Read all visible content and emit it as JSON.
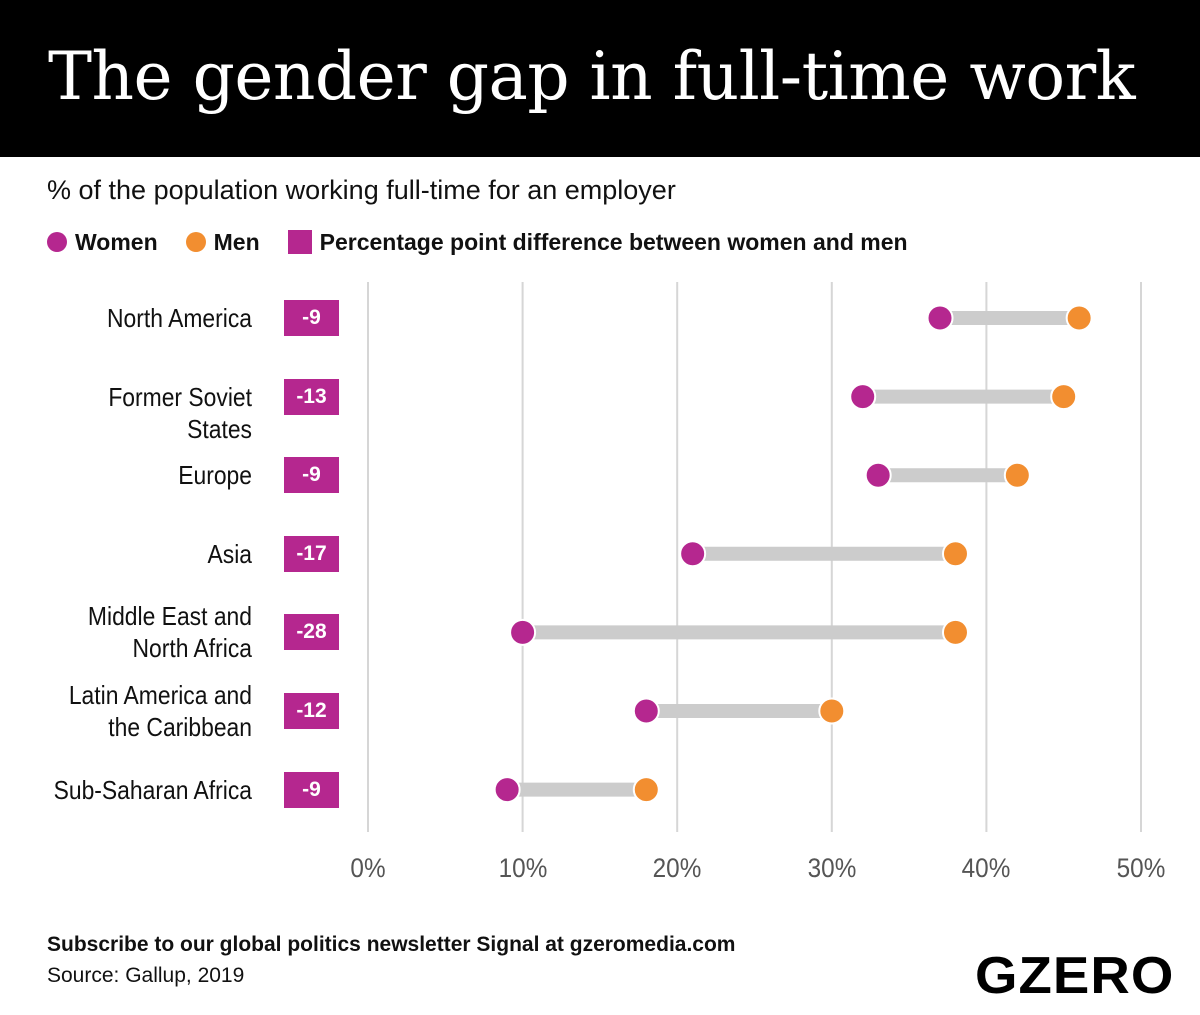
{
  "header": {
    "title": "The gender gap in full-time work"
  },
  "colors": {
    "women": "#b5278f",
    "men": "#f28e30",
    "connector": "#cccccc",
    "grid": "#d6d6d6",
    "diff_box": "#b5278f"
  },
  "legend": {
    "women": "Women",
    "men": "Men",
    "difference": "Percentage point difference between women and men"
  },
  "chart_data": {
    "type": "dumbbell",
    "title": "The gender gap in full-time work",
    "subtitle": "% of the population working full-time for an employer",
    "x_axis": {
      "min": 0,
      "max": 50,
      "ticks": [
        "0%",
        "10%",
        "20%",
        "30%",
        "40%",
        "50%"
      ],
      "tick_values": [
        0,
        10,
        20,
        30,
        40,
        50
      ],
      "grid": true
    },
    "series": [
      {
        "name": "Women",
        "values": [
          37,
          32,
          33,
          21,
          10,
          18,
          9
        ]
      },
      {
        "name": "Men",
        "values": [
          46,
          45,
          42,
          38,
          38,
          30,
          18
        ]
      }
    ],
    "categories": [
      {
        "label_lines": [
          "North America"
        ],
        "difference": "-9"
      },
      {
        "label_lines": [
          "Former Soviet States"
        ],
        "difference": "-13"
      },
      {
        "label_lines": [
          "Europe"
        ],
        "difference": "-9"
      },
      {
        "label_lines": [
          "Asia"
        ],
        "difference": "-17"
      },
      {
        "label_lines": [
          "Middle East and",
          "North Africa"
        ],
        "difference": "-28"
      },
      {
        "label_lines": [
          "Latin America and",
          "the Caribbean"
        ],
        "difference": "-12"
      },
      {
        "label_lines": [
          "Sub-Saharan Africa"
        ],
        "difference": "-9"
      }
    ]
  },
  "footer": {
    "cta": "Subscribe to our global politics newsletter Signal at gzeromedia.com",
    "source": "Source: Gallup, 2019",
    "logo": "GZERO"
  }
}
